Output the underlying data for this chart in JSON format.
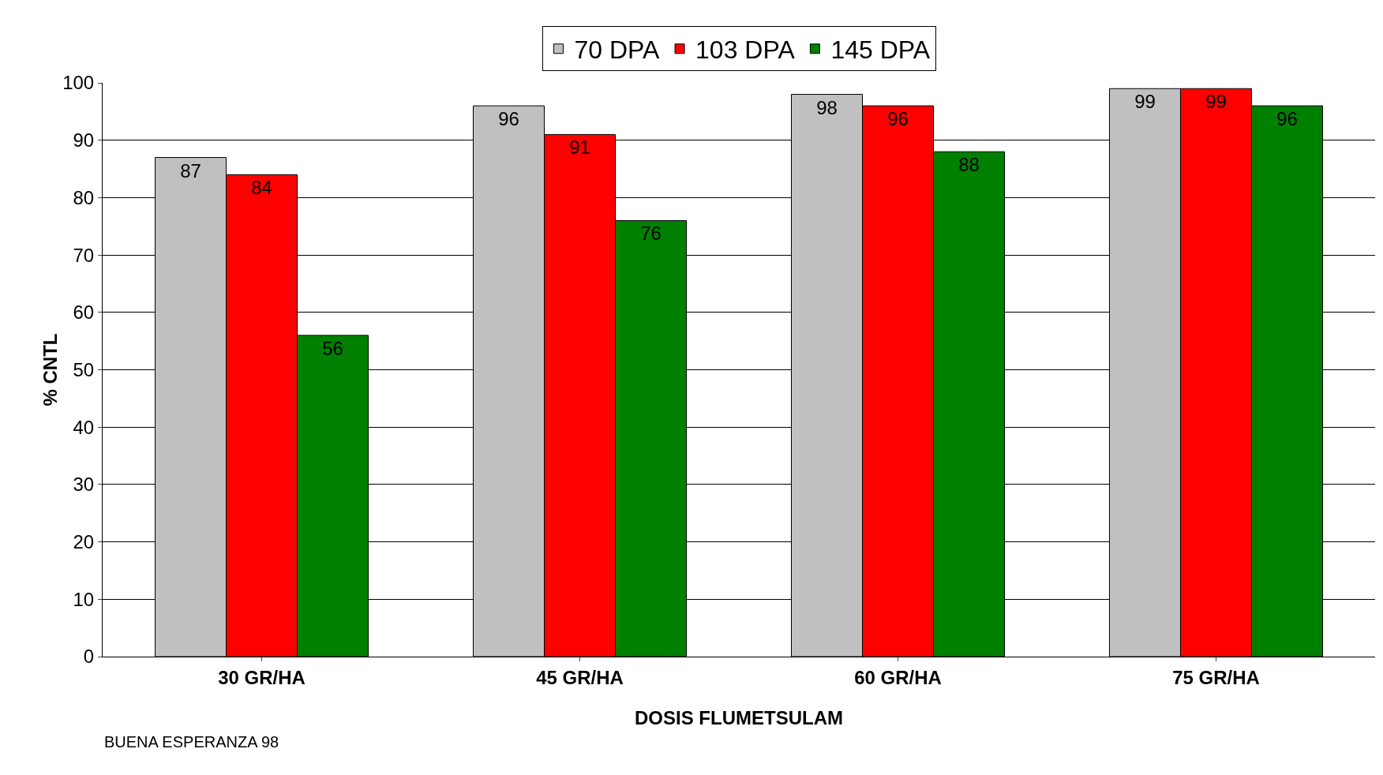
{
  "chart_data": {
    "type": "bar",
    "xlabel": "DOSIS FLUMETSULAM",
    "ylabel": "% CNTL",
    "categories": [
      "30 GR/HA",
      "45 GR/HA",
      "60 GR/HA",
      "75 GR/HA"
    ],
    "series": [
      {
        "name": "70 DPA",
        "color": "#c0c0c0",
        "values": [
          87,
          96,
          98,
          99
        ]
      },
      {
        "name": "103 DPA",
        "color": "#ff0000",
        "values": [
          84,
          91,
          96,
          99
        ]
      },
      {
        "name": "145 DPA",
        "color": "#008000",
        "values": [
          56,
          76,
          88,
          96
        ]
      }
    ],
    "ylim": [
      0,
      100
    ],
    "yticks": [
      0,
      10,
      20,
      30,
      40,
      50,
      60,
      70,
      80,
      90,
      100
    ],
    "grid": "y",
    "legend": "top",
    "data_labels": true,
    "annotations": [
      "BUENA ESPERANZA 98"
    ]
  }
}
